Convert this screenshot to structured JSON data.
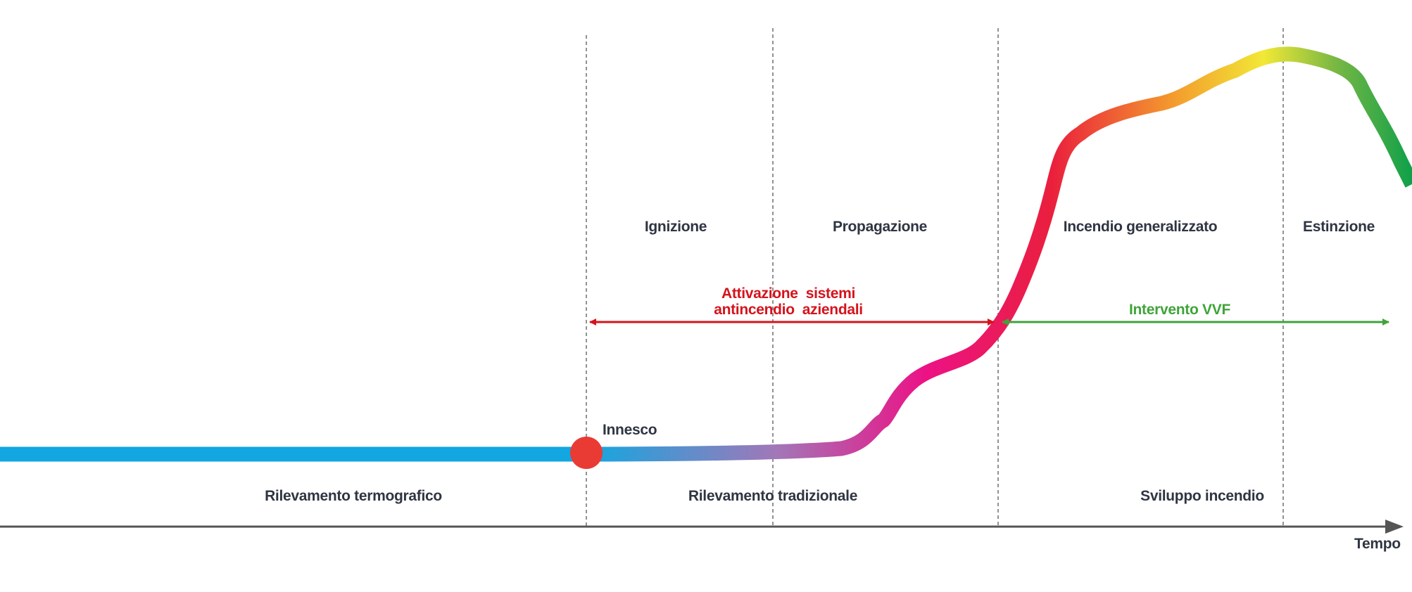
{
  "phases": {
    "ignizione": "Ignizione",
    "propagazione": "Propagazione",
    "incendio_generalizzato": "Incendio generalizzato",
    "estinzione": "Estinzione"
  },
  "innesco_label": "Innesco",
  "activation": {
    "line1": "Attivazione  sistemi",
    "line2": "antincendio  aziendali",
    "color": "#d5131c"
  },
  "intervento": {
    "label": "Intervento VVF",
    "color": "#3fa43a"
  },
  "detection": {
    "termografico": "Rilevamento termografico",
    "tradizionale": "Rilevamento tradizionale",
    "sviluppo": "Sviluppo incendio"
  },
  "axis": {
    "label": "Tempo",
    "color": "#555555"
  },
  "curve_colors": {
    "baseline": "#12a7e0",
    "ignition": "#a277b8",
    "propagation": "#ec1286",
    "flashover": "#ea1f3d",
    "growth": "#f39a2d",
    "peak": "#f2e836",
    "decay": "#0fa04a"
  },
  "ignition_dot_color": "#ea3a34"
}
